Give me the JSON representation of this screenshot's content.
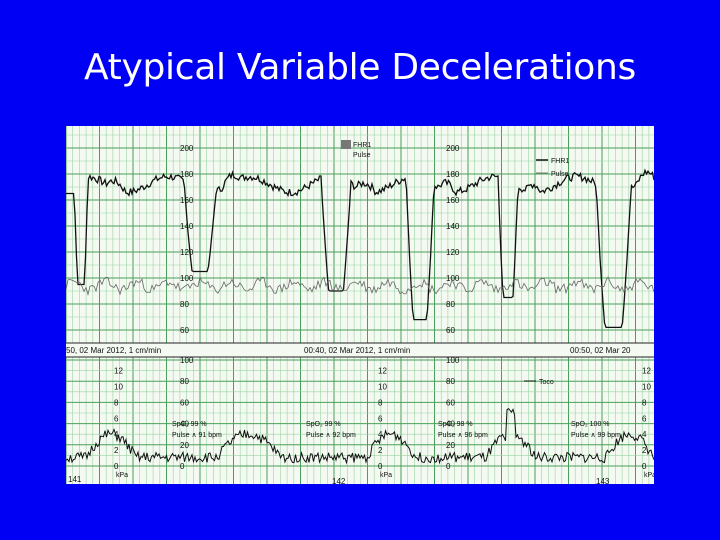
{
  "slide": {
    "title": "Atypical Variable Decelerations"
  },
  "trace": {
    "fhr_scale": [
      "200",
      "180",
      "160",
      "140",
      "120",
      "100",
      "80",
      "60"
    ],
    "uc_scale_mmhg": [
      "100",
      "80",
      "60",
      "40",
      "20",
      "0"
    ],
    "uc_scale_kpa": [
      "12",
      "10",
      "8",
      "6",
      "4",
      "2",
      "0"
    ],
    "unit_kpa": "kPa",
    "legend_top_small": {
      "fhr": "FHR1",
      "pulse": "Pulse"
    },
    "legend_top_right": {
      "fhr": "FHR1",
      "pulse": "Pulse"
    },
    "legend_toco": "Toco",
    "timestamps": [
      "50, 02 Mar 2012, 1 cm/min",
      "00:40, 02 Mar 2012, 1 cm/min",
      "00:50, 02 Mar 20"
    ],
    "spo2_readings": [
      {
        "spo2": "SpO₂ 99 %",
        "pulse": "Pulse ∧ 91 bpm"
      },
      {
        "spo2": "SpO₂ 99 %",
        "pulse": "Pulse ∧ 92 bpm"
      },
      {
        "spo2": "SpO₂ 98 %",
        "pulse": "Pulse ∧ 96 bpm"
      },
      {
        "spo2": "SpO₂ 100 %",
        "pulse": "Pulse ∧ 99 bpm"
      }
    ],
    "page_numbers": [
      "141",
      "142",
      "143"
    ],
    "colors": {
      "paper": "#f4f9f2",
      "grid_major": "#4aa05a",
      "grid_minor": "#9cd3a2",
      "trace": "#111111"
    }
  }
}
